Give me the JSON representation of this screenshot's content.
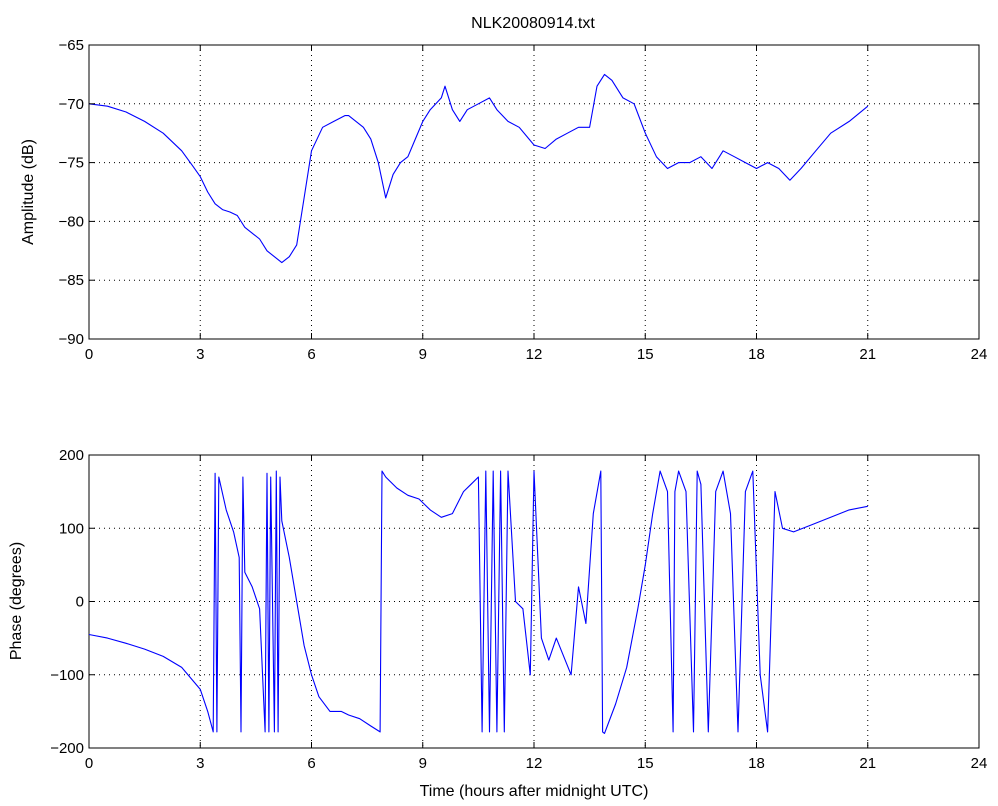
{
  "figure": {
    "title": "NLK20080914.txt",
    "line_color": "#0000ff"
  },
  "chart_data": [
    {
      "type": "line",
      "title": "NLK20080914.txt",
      "xlabel": "",
      "ylabel": "Amplitude (dB)",
      "xlim": [
        0,
        24
      ],
      "ylim": [
        -90,
        -65
      ],
      "xticks": [
        0,
        3,
        6,
        9,
        12,
        15,
        18,
        21,
        24
      ],
      "yticks": [
        -90,
        -85,
        -80,
        -75,
        -70,
        -65
      ],
      "grid": true,
      "series": [
        {
          "x": [
            0,
            0.5,
            1,
            1.5,
            2,
            2.5,
            2.8,
            3.0,
            3.2,
            3.4,
            3.6,
            3.8,
            4.0,
            4.2,
            4.4,
            4.6,
            4.8,
            5.0,
            5.2,
            5.4,
            5.6,
            5.8,
            6.0,
            6.3,
            6.6,
            6.9,
            7.0,
            7.2,
            7.4,
            7.6,
            7.8,
            8.0,
            8.2,
            8.4,
            8.6,
            8.8,
            9.0,
            9.2,
            9.5,
            9.6,
            9.8,
            10.0,
            10.2,
            10.5,
            10.8,
            11.0,
            11.3,
            11.6,
            12.0,
            12.3,
            12.6,
            12.9,
            13.2,
            13.5,
            13.7,
            13.9,
            14.1,
            14.4,
            14.7,
            15.0,
            15.3,
            15.6,
            15.9,
            16.2,
            16.5,
            16.8,
            17.1,
            17.4,
            17.7,
            18.0,
            18.3,
            18.6,
            18.9,
            19.2,
            19.6,
            20.0,
            20.5,
            21.0
          ],
          "values": [
            -70.0,
            -70.2,
            -70.7,
            -71.5,
            -72.5,
            -74.0,
            -75.3,
            -76.2,
            -77.5,
            -78.5,
            -79.0,
            -79.2,
            -79.5,
            -80.5,
            -81.0,
            -81.5,
            -82.5,
            -83.0,
            -83.5,
            -83.0,
            -82.0,
            -78.0,
            -74.0,
            -72.0,
            -71.5,
            -71.0,
            -71.0,
            -71.5,
            -72.0,
            -73.0,
            -75.0,
            -78.0,
            -76.0,
            -75.0,
            -74.5,
            -73.0,
            -71.5,
            -70.5,
            -69.5,
            -68.5,
            -70.5,
            -71.5,
            -70.5,
            -70.0,
            -69.5,
            -70.5,
            -71.5,
            -72.0,
            -73.5,
            -73.8,
            -73.0,
            -72.5,
            -72.0,
            -72.0,
            -68.5,
            -67.5,
            -68.0,
            -69.5,
            -70.0,
            -72.5,
            -74.5,
            -75.5,
            -75.0,
            -75.0,
            -74.5,
            -75.5,
            -74.0,
            -74.5,
            -75.0,
            -75.5,
            -75.0,
            -75.5,
            -76.5,
            -75.5,
            -74.0,
            -72.5,
            -71.5,
            -70.2
          ]
        }
      ]
    },
    {
      "type": "line",
      "title": "",
      "xlabel": "Time (hours after midnight UTC)",
      "ylabel": "Phase (degrees)",
      "xlim": [
        0,
        24
      ],
      "ylim": [
        -200,
        200
      ],
      "xticks": [
        0,
        3,
        6,
        9,
        12,
        15,
        18,
        21,
        24
      ],
      "yticks": [
        -200,
        -100,
        0,
        100,
        200
      ],
      "grid": true,
      "series": [
        {
          "x": [
            0,
            0.5,
            1,
            1.5,
            2,
            2.5,
            3.0,
            3.2,
            3.35,
            3.4,
            3.45,
            3.5,
            3.7,
            3.9,
            4.05,
            4.1,
            4.15,
            4.2,
            4.4,
            4.6,
            4.75,
            4.8,
            4.85,
            4.9,
            5.0,
            5.05,
            5.1,
            5.15,
            5.2,
            5.4,
            5.6,
            5.8,
            6.0,
            6.2,
            6.5,
            6.8,
            7.0,
            7.3,
            7.6,
            7.85,
            7.9,
            8.0,
            8.3,
            8.6,
            8.9,
            9.2,
            9.5,
            9.8,
            10.1,
            10.3,
            10.5,
            10.6,
            10.7,
            10.8,
            10.9,
            11.0,
            11.1,
            11.2,
            11.3,
            11.5,
            11.7,
            11.9,
            12.0,
            12.2,
            12.4,
            12.6,
            12.8,
            13.0,
            13.2,
            13.4,
            13.6,
            13.8,
            13.85,
            13.9,
            14.2,
            14.5,
            14.8,
            15.0,
            15.2,
            15.4,
            15.6,
            15.75,
            15.8,
            15.9,
            16.1,
            16.3,
            16.4,
            16.5,
            16.7,
            16.9,
            17.1,
            17.3,
            17.5,
            17.7,
            17.9,
            18.1,
            18.3,
            18.5,
            18.7,
            19.0,
            19.5,
            20.0,
            20.5,
            21.0
          ],
          "values": [
            -45,
            -50,
            -57,
            -65,
            -75,
            -90,
            -120,
            -150,
            -178,
            175,
            -178,
            170,
            125,
            95,
            60,
            -178,
            170,
            40,
            20,
            -10,
            -178,
            175,
            -178,
            170,
            -178,
            178,
            -178,
            170,
            110,
            60,
            0,
            -60,
            -100,
            -130,
            -150,
            -150,
            -155,
            -160,
            -170,
            -178,
            178,
            170,
            155,
            145,
            140,
            125,
            115,
            120,
            150,
            160,
            170,
            -178,
            178,
            -178,
            178,
            -178,
            178,
            -178,
            178,
            0,
            -10,
            -100,
            178,
            -50,
            -80,
            -50,
            -75,
            -100,
            20,
            -30,
            120,
            178,
            -178,
            -180,
            -140,
            -90,
            -10,
            50,
            120,
            178,
            150,
            -178,
            150,
            178,
            150,
            -178,
            178,
            160,
            -178,
            150,
            178,
            120,
            -178,
            150,
            178,
            -100,
            -178,
            150,
            100,
            95,
            105,
            115,
            125,
            130
          ]
        }
      ]
    }
  ]
}
